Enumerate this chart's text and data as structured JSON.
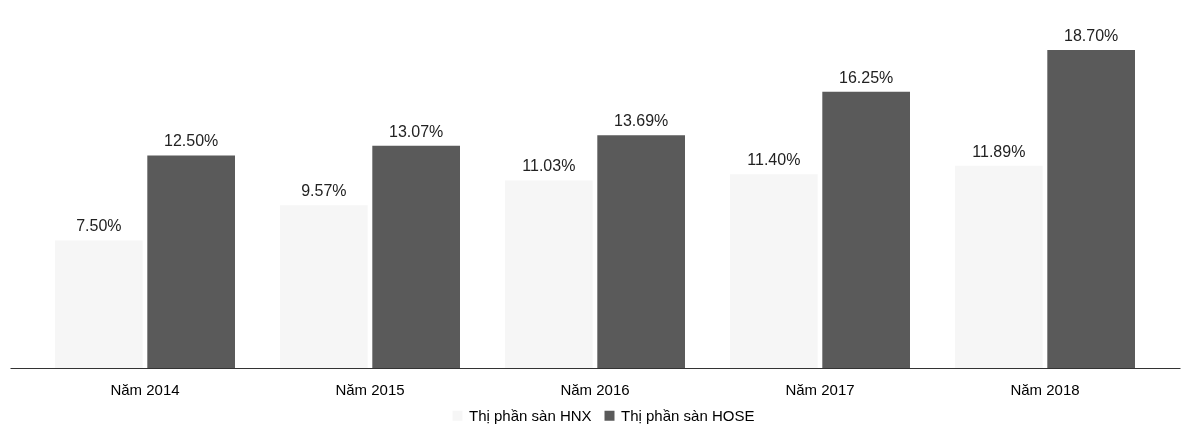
{
  "chart_data": {
    "type": "bar",
    "categories": [
      "Năm 2014",
      "Năm 2015",
      "Năm 2016",
      "Năm 2017",
      "Năm 2018"
    ],
    "series": [
      {
        "name": "Thị phần sàn HNX",
        "color": "#f6f6f6",
        "values": [
          7.5,
          9.57,
          11.03,
          11.4,
          11.89
        ],
        "value_labels": [
          "7.50%",
          "9.57%",
          "11.03%",
          "11.40%",
          "11.89%"
        ]
      },
      {
        "name": "Thị phần sàn HOSE",
        "color": "#5a5a5a",
        "values": [
          12.5,
          13.07,
          13.69,
          16.25,
          18.7
        ],
        "value_labels": [
          "12.50%",
          "13.07%",
          "13.69%",
          "16.25%",
          "18.70%"
        ]
      }
    ],
    "legend": "bottom",
    "grid": false
  }
}
